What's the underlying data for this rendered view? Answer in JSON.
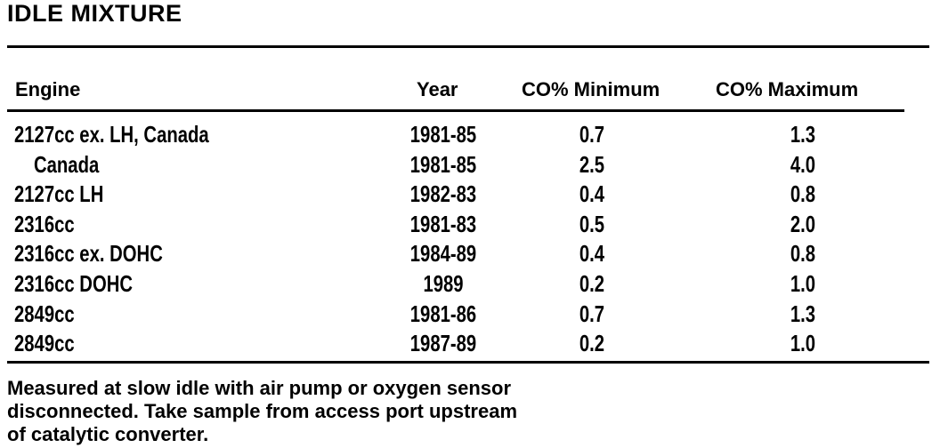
{
  "title": "IDLE MIXTURE",
  "headers": {
    "engine": "Engine",
    "year": "Year",
    "co_min": "CO% Minimum",
    "co_max": "CO% Maximum"
  },
  "rows": [
    {
      "engine": "2127cc ex. LH, Canada",
      "year": "1981-85",
      "co_min": "0.7",
      "co_max": "1.3",
      "indent": false
    },
    {
      "engine": "Canada",
      "year": "1981-85",
      "co_min": "2.5",
      "co_max": "4.0",
      "indent": true
    },
    {
      "engine": "2127cc LH",
      "year": "1982-83",
      "co_min": "0.4",
      "co_max": "0.8",
      "indent": false
    },
    {
      "engine": "2316cc",
      "year": "1981-83",
      "co_min": "0.5",
      "co_max": "2.0",
      "indent": false
    },
    {
      "engine": "2316cc ex. DOHC",
      "year": "1984-89",
      "co_min": "0.4",
      "co_max": "0.8",
      "indent": false
    },
    {
      "engine": "2316cc DOHC",
      "year": "1989",
      "co_min": "0.2",
      "co_max": "1.0",
      "indent": false
    },
    {
      "engine": "2849cc",
      "year": "1981-86",
      "co_min": "0.7",
      "co_max": "1.3",
      "indent": false
    },
    {
      "engine": "2849cc",
      "year": "1987-89",
      "co_min": "0.2",
      "co_max": "1.0",
      "indent": false
    }
  ],
  "footer": {
    "line1": "Measured at slow idle with air pump or oxygen sensor",
    "line2": "disconnected.  Take sample from access port upstream",
    "line3": "of catalytic converter."
  }
}
